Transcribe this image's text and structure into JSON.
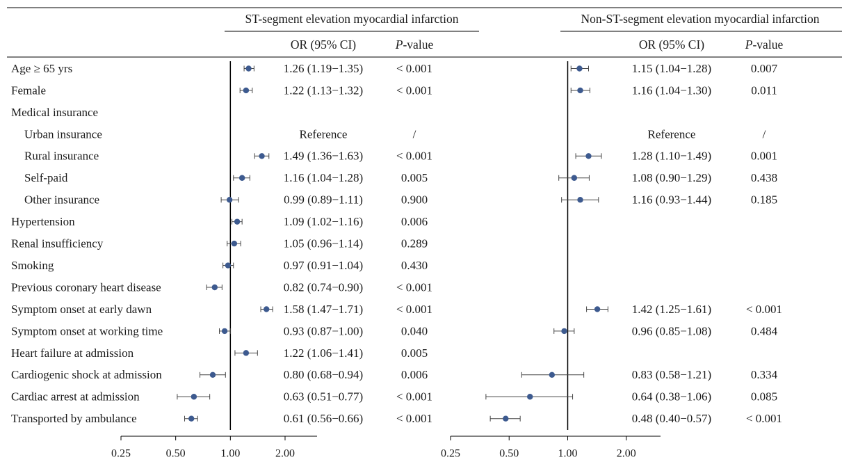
{
  "chart_data": [
    {
      "type": "forest",
      "title": "ST-segment elevation myocardial infarction",
      "xscale": "log",
      "xticks": [
        "0.25",
        "0.50",
        "1.00",
        "2.00"
      ],
      "xlim": [
        0.25,
        3.0
      ],
      "reference_line": 1.0,
      "col_or": "OR (95% CI)",
      "col_p": "P-value",
      "rows": [
        {
          "label": "Age ≥ 65 yrs",
          "or": 1.26,
          "lo": 1.19,
          "hi": 1.35,
          "or_text": "1.26 (1.19−1.35)",
          "p": "< 0.001"
        },
        {
          "label": "Female",
          "or": 1.22,
          "lo": 1.13,
          "hi": 1.32,
          "or_text": "1.22 (1.13−1.32)",
          "p": "< 0.001"
        },
        {
          "label": "Medical insurance"
        },
        {
          "label": "Urban insurance",
          "indent": true,
          "or_text": "Reference",
          "p": "/"
        },
        {
          "label": "Rural insurance",
          "indent": true,
          "or": 1.49,
          "lo": 1.36,
          "hi": 1.63,
          "or_text": "1.49 (1.36−1.63)",
          "p": "< 0.001"
        },
        {
          "label": "Self-paid",
          "indent": true,
          "or": 1.16,
          "lo": 1.04,
          "hi": 1.28,
          "or_text": "1.16 (1.04−1.28)",
          "p": "0.005"
        },
        {
          "label": "Other insurance",
          "indent": true,
          "or": 0.99,
          "lo": 0.89,
          "hi": 1.11,
          "or_text": "0.99 (0.89−1.11)",
          "p": "0.900"
        },
        {
          "label": "Hypertension",
          "or": 1.09,
          "lo": 1.02,
          "hi": 1.16,
          "or_text": "1.09 (1.02−1.16)",
          "p": "0.006"
        },
        {
          "label": "Renal insufficiency",
          "or": 1.05,
          "lo": 0.96,
          "hi": 1.14,
          "or_text": "1.05 (0.96−1.14)",
          "p": "0.289"
        },
        {
          "label": "Smoking",
          "or": 0.97,
          "lo": 0.91,
          "hi": 1.04,
          "or_text": "0.97 (0.91−1.04)",
          "p": "0.430"
        },
        {
          "label": "Previous coronary heart disease",
          "or": 0.82,
          "lo": 0.74,
          "hi": 0.9,
          "or_text": "0.82 (0.74−0.90)",
          "p": "< 0.001"
        },
        {
          "label": "Symptom onset at early dawn",
          "or": 1.58,
          "lo": 1.47,
          "hi": 1.71,
          "or_text": "1.58 (1.47−1.71)",
          "p": "< 0.001"
        },
        {
          "label": "Symptom onset at working time",
          "or": 0.93,
          "lo": 0.87,
          "hi": 1.0,
          "or_text": "0.93 (0.87−1.00)",
          "p": "0.040"
        },
        {
          "label": "Heart failure at admission",
          "or": 1.22,
          "lo": 1.06,
          "hi": 1.41,
          "or_text": "1.22 (1.06−1.41)",
          "p": "0.005"
        },
        {
          "label": "Cardiogenic shock at admission",
          "or": 0.8,
          "lo": 0.68,
          "hi": 0.94,
          "or_text": "0.80 (0.68−0.94)",
          "p": "0.006"
        },
        {
          "label": "Cardiac arrest at admission",
          "or": 0.63,
          "lo": 0.51,
          "hi": 0.77,
          "or_text": "0.63 (0.51−0.77)",
          "p": "< 0.001"
        },
        {
          "label": "Transported by ambulance",
          "or": 0.61,
          "lo": 0.56,
          "hi": 0.66,
          "or_text": "0.61 (0.56−0.66)",
          "p": "< 0.001"
        }
      ]
    },
    {
      "type": "forest",
      "title": "Non-ST-segment elevation myocardial infarction",
      "xscale": "log",
      "xticks": [
        "0.25",
        "0.50",
        "1.00",
        "2.00"
      ],
      "xlim": [
        0.25,
        3.0
      ],
      "reference_line": 1.0,
      "col_or": "OR (95% CI)",
      "col_p": "P-value",
      "rows": [
        {
          "label": "Age ≥ 65 yrs",
          "or": 1.15,
          "lo": 1.04,
          "hi": 1.28,
          "or_text": "1.15 (1.04−1.28)",
          "p": "0.007"
        },
        {
          "label": "Female",
          "or": 1.16,
          "lo": 1.04,
          "hi": 1.3,
          "or_text": "1.16 (1.04−1.30)",
          "p": "0.011"
        },
        {
          "label": "Medical insurance"
        },
        {
          "label": "Urban insurance",
          "or_text": "Reference",
          "p": "/"
        },
        {
          "label": "Rural insurance",
          "or": 1.28,
          "lo": 1.1,
          "hi": 1.49,
          "or_text": "1.28 (1.10−1.49)",
          "p": "0.001"
        },
        {
          "label": "Self-paid",
          "or": 1.08,
          "lo": 0.9,
          "hi": 1.29,
          "or_text": "1.08 (0.90−1.29)",
          "p": "0.438"
        },
        {
          "label": "Other insurance",
          "or": 1.16,
          "lo": 0.93,
          "hi": 1.44,
          "or_text": "1.16 (0.93−1.44)",
          "p": "0.185"
        },
        {
          "label": "Hypertension"
        },
        {
          "label": "Renal insufficiency"
        },
        {
          "label": "Smoking"
        },
        {
          "label": "Previous coronary heart disease"
        },
        {
          "label": "Symptom onset at early dawn",
          "or": 1.42,
          "lo": 1.25,
          "hi": 1.61,
          "or_text": "1.42 (1.25−1.61)",
          "p": "< 0.001"
        },
        {
          "label": "Symptom onset at working time",
          "or": 0.96,
          "lo": 0.85,
          "hi": 1.08,
          "or_text": "0.96 (0.85−1.08)",
          "p": "0.484"
        },
        {
          "label": "Heart failure at admission"
        },
        {
          "label": "Cardiogenic shock at admission",
          "or": 0.83,
          "lo": 0.58,
          "hi": 1.21,
          "or_text": "0.83 (0.58−1.21)",
          "p": "0.334"
        },
        {
          "label": "Cardiac arrest at admission",
          "or": 0.64,
          "lo": 0.38,
          "hi": 1.06,
          "or_text": "0.64 (0.38−1.06)",
          "p": "0.085"
        },
        {
          "label": "Transported by ambulance",
          "or": 0.48,
          "lo": 0.4,
          "hi": 0.57,
          "or_text": "0.48 (0.40−0.57)",
          "p": "< 0.001"
        }
      ]
    }
  ],
  "colors": {
    "point": "#3d5a8f",
    "ci": "#444444",
    "line": "#000000",
    "text": "#1a1a1a"
  }
}
